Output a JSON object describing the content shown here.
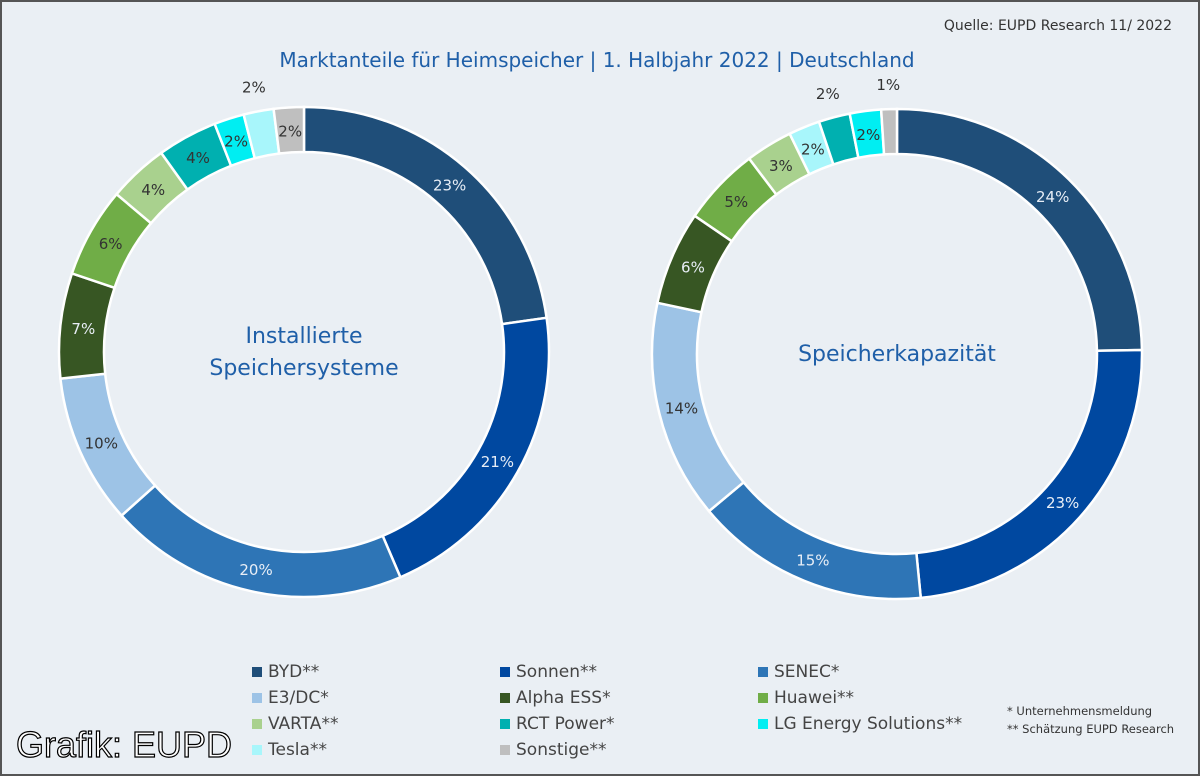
{
  "source": "Quelle: EUPD Research 11/ 2022",
  "watermark": "Grafik: EUPD",
  "notes": [
    "* Unternehmensmeldung",
    "** Schätzung EUPD Research"
  ],
  "chart_data": {
    "type": "pie",
    "title": "Marktanteile für Heimspeicher | 1. Halbjahr 2022 | Deutschland",
    "colors": {
      "BYD**": "#1f4e79",
      "Sonnen**": "#0048a0",
      "SENEC*": "#2e75b6",
      "E3/DC*": "#9dc3e6",
      "Alpha ESS*": "#375623",
      "Huawei**": "#70ad47",
      "VARTA**": "#a9d18e",
      "RCT Power*": "#00b0b0",
      "LG Energy Solutions**": "#00eef2",
      "Tesla**": "#a8f6fb",
      "Sonstige**": "#bfbfbf"
    },
    "legend": [
      "BYD**",
      "Sonnen**",
      "SENEC*",
      "E3/DC*",
      "Alpha ESS*",
      "Huawei**",
      "VARTA**",
      "RCT Power*",
      "LG Energy Solutions**",
      "Tesla**",
      "Sonstige**"
    ],
    "charts": [
      {
        "center_label": [
          "Installierte",
          "Speichersysteme"
        ],
        "slices": [
          [
            "BYD**",
            23
          ],
          [
            "Sonnen**",
            21
          ],
          [
            "SENEC*",
            20
          ],
          [
            "E3/DC*",
            10
          ],
          [
            "Alpha ESS*",
            7
          ],
          [
            "Huawei**",
            6
          ],
          [
            "VARTA**",
            4
          ],
          [
            "RCT Power*",
            4
          ],
          [
            "LG Energy Solutions**",
            2
          ],
          [
            "Tesla**",
            2
          ],
          [
            "Sonstige**",
            2
          ]
        ]
      },
      {
        "center_label": [
          "Speicherkapazität"
        ],
        "slices": [
          [
            "BYD**",
            24
          ],
          [
            "Sonnen**",
            23
          ],
          [
            "SENEC*",
            15
          ],
          [
            "E3/DC*",
            14
          ],
          [
            "Alpha ESS*",
            6
          ],
          [
            "Huawei**",
            5
          ],
          [
            "VARTA**",
            3
          ],
          [
            "Tesla**",
            2
          ],
          [
            "RCT Power*",
            2
          ],
          [
            "LG Energy Solutions**",
            2
          ],
          [
            "Sonstige**",
            1
          ]
        ]
      }
    ]
  }
}
